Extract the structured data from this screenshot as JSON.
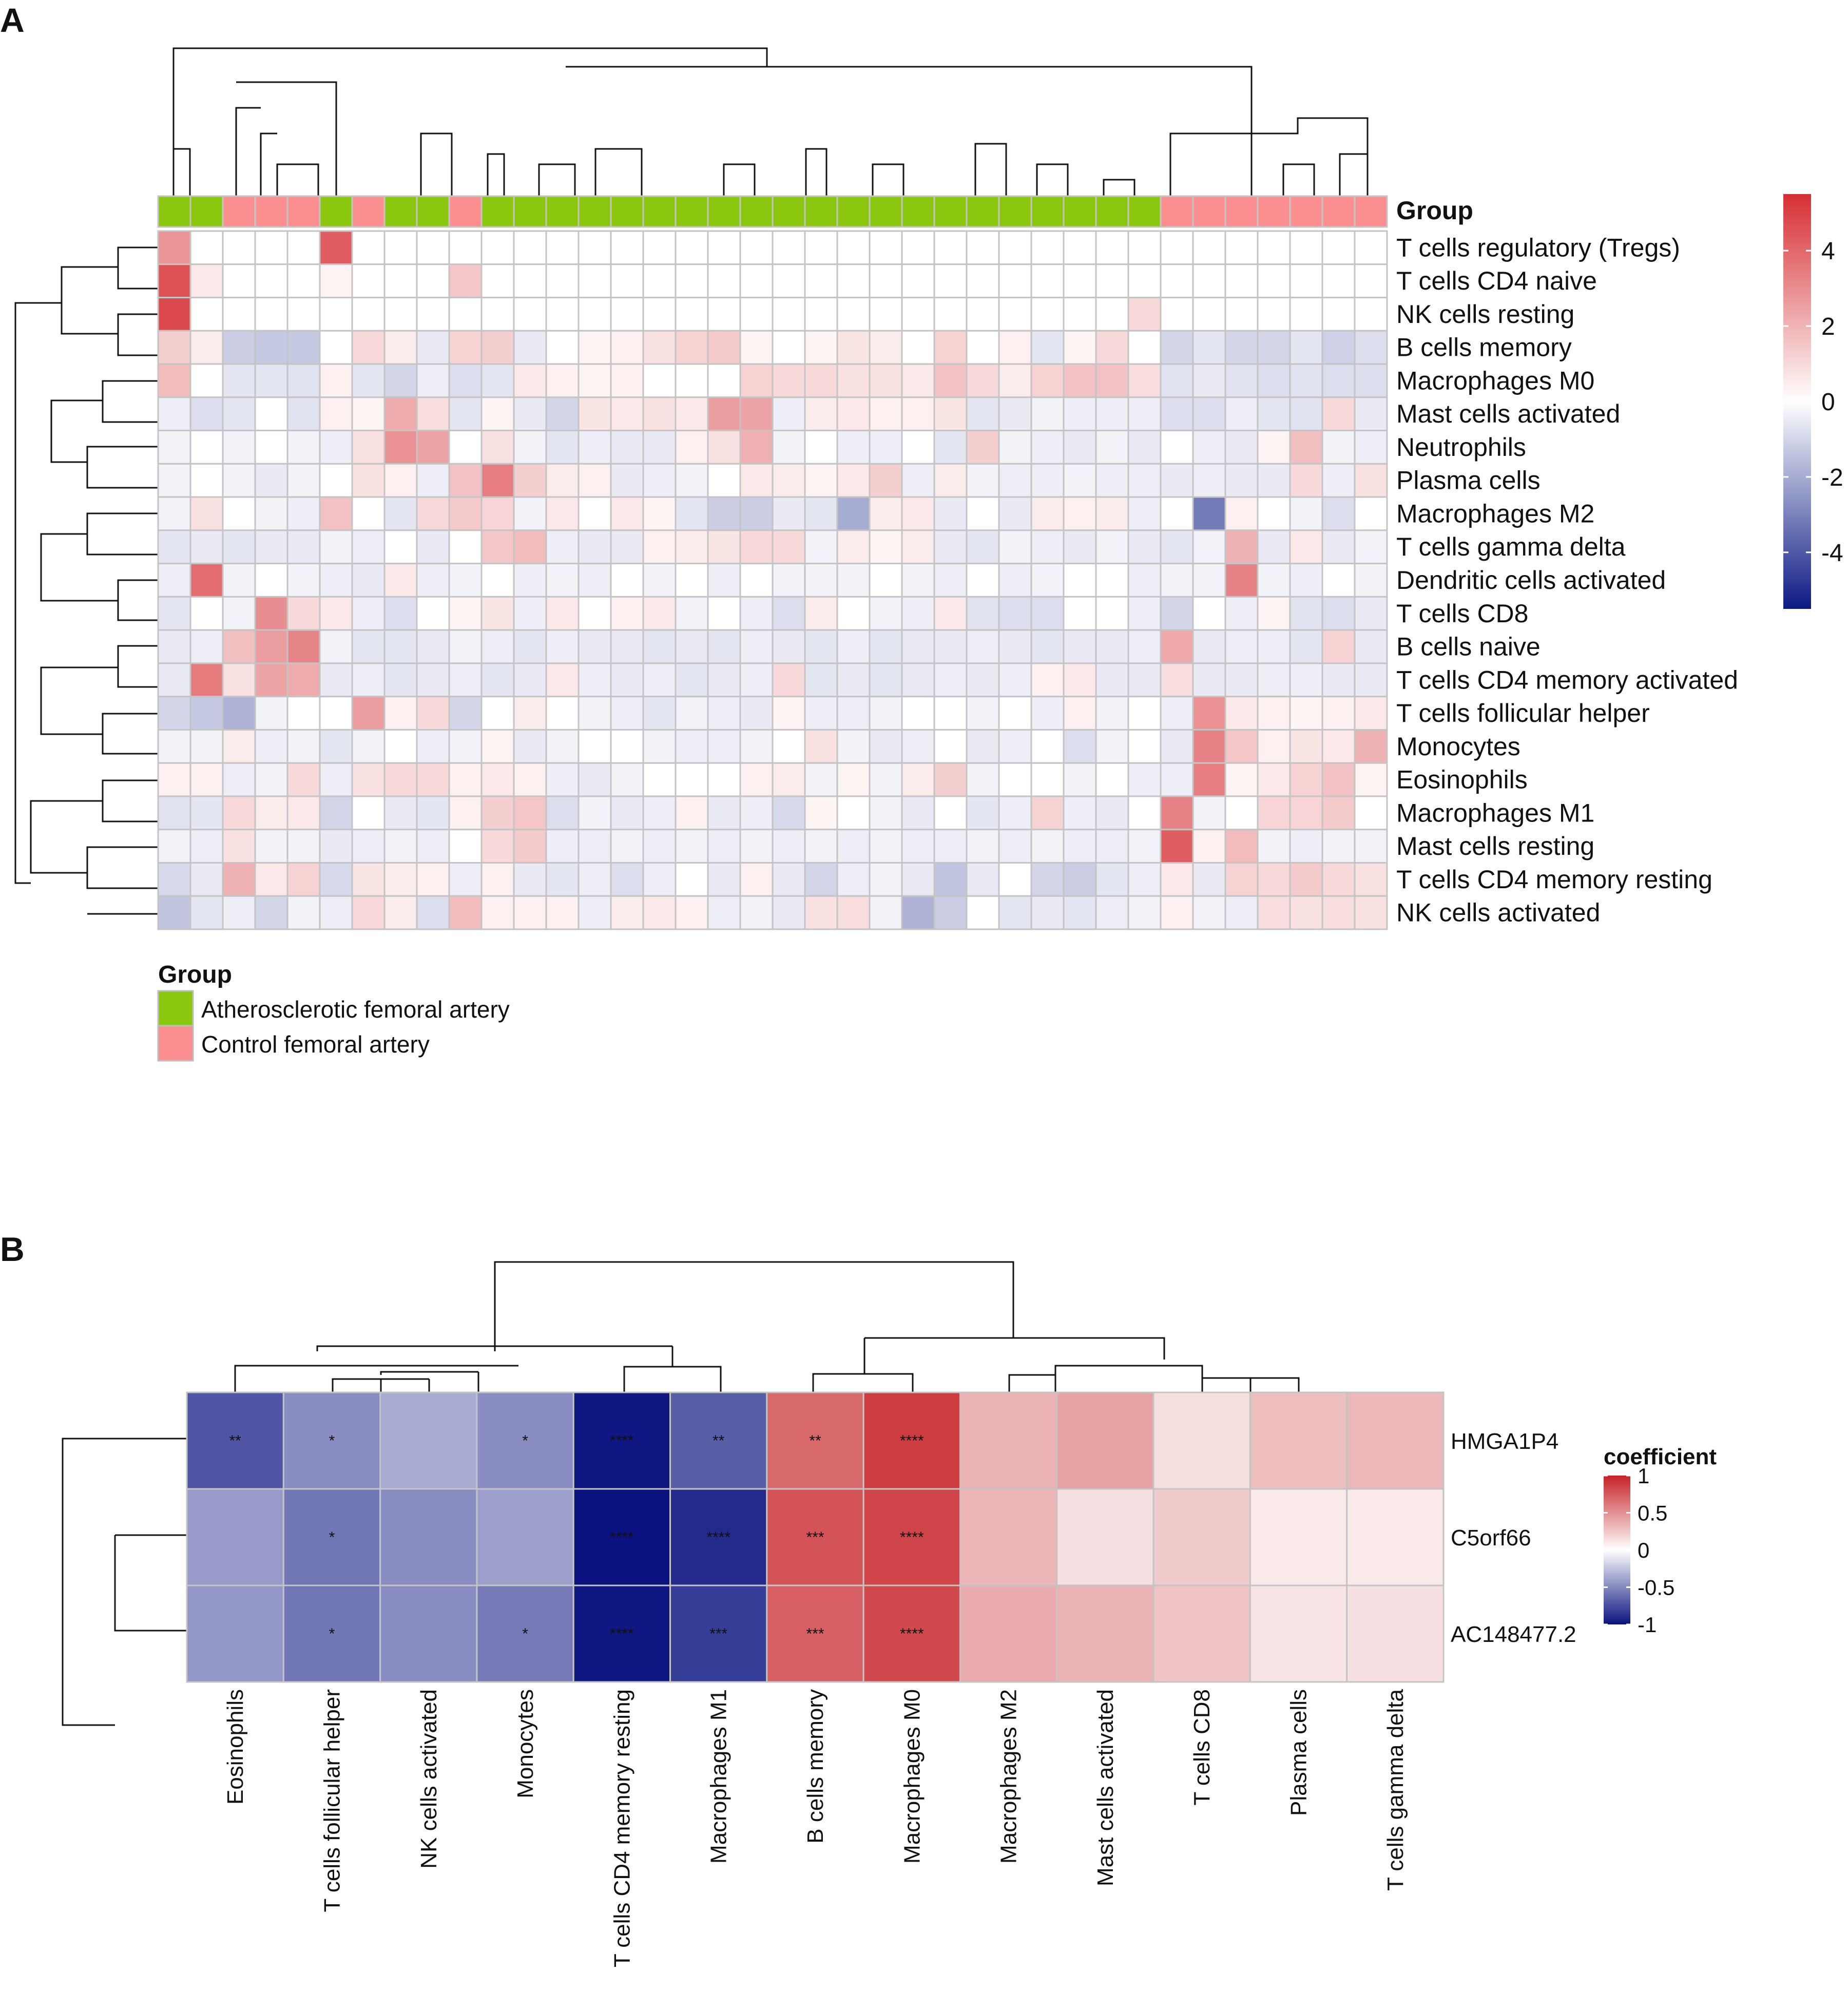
{
  "panel_a": {
    "label": "A",
    "group_label": "Group",
    "legend_title": "Group",
    "legend_items": [
      {
        "label": "Atherosclerotic femoral artery",
        "color": "#8cc70f"
      },
      {
        "label": "Control femoral artery",
        "color": "#fb8f8f"
      }
    ],
    "colorbar_ticks": [
      "4",
      "2",
      "0",
      "-2",
      "-4"
    ],
    "chart_data": {
      "type": "heatmap",
      "title": "",
      "rows": [
        "T cells regulatory (Tregs)",
        "T cells CD4 naive",
        "NK cells resting",
        "B cells memory",
        "Macrophages M0",
        "Mast cells activated",
        "Neutrophils",
        "Plasma cells",
        "Macrophages M2",
        "T cells gamma delta",
        "Dendritic cells activated",
        "T cells CD8",
        "B cells naive",
        "T cells CD4 memory activated",
        "T cells follicular helper",
        "Monocytes",
        "Eosinophils",
        "Macrophages M1",
        "Mast cells resting",
        "T cells CD4 memory resting",
        "NK cells activated"
      ],
      "groups": [
        "A",
        "A",
        "C",
        "C",
        "C",
        "A",
        "C",
        "A",
        "A",
        "C",
        "A",
        "A",
        "A",
        "A",
        "A",
        "A",
        "A",
        "A",
        "A",
        "A",
        "A",
        "A",
        "A",
        "A",
        "A",
        "A",
        "A",
        "A",
        "A",
        "A",
        "A",
        "C",
        "C",
        "C",
        "C",
        "C",
        "C",
        "C"
      ],
      "value_range": [
        -5.5,
        5.5
      ],
      "values": [
        [
          2.8,
          0,
          0,
          0,
          0,
          4.3,
          0,
          0,
          0,
          0,
          0,
          0,
          0,
          0,
          0,
          0,
          0,
          0,
          0,
          0,
          0,
          0,
          0,
          0,
          0,
          0,
          0,
          0,
          0,
          0,
          0,
          0,
          0,
          0,
          0,
          0,
          0,
          0
        ],
        [
          4.6,
          0.6,
          0,
          0,
          0,
          0.3,
          0,
          0,
          0,
          1.5,
          0,
          0,
          0,
          0,
          0,
          0,
          0,
          0,
          0,
          0,
          0,
          0,
          0,
          0,
          0,
          0,
          0,
          0,
          0,
          0,
          0,
          0,
          0,
          0,
          0,
          0,
          0,
          0
        ],
        [
          4.8,
          0,
          0,
          0,
          0,
          0,
          0,
          0,
          0,
          0,
          0,
          0,
          0,
          0,
          0,
          0,
          0,
          0,
          0,
          0,
          0,
          0,
          0,
          0,
          0,
          0,
          0,
          0,
          0,
          0,
          1.0,
          0,
          0,
          0,
          0,
          0,
          0,
          0
        ],
        [
          1.3,
          0.5,
          -1.2,
          -1.3,
          -1.3,
          0,
          1.0,
          0.5,
          -0.5,
          1.2,
          1.3,
          -0.5,
          0,
          0.3,
          0.4,
          0.8,
          1.2,
          1.4,
          0.3,
          0,
          0.3,
          0.7,
          0.5,
          0,
          1.2,
          0,
          0.4,
          -0.6,
          0.3,
          1.0,
          0,
          -1.0,
          -0.6,
          -1.0,
          -1.0,
          -0.6,
          -1.1,
          -0.8
        ],
        [
          1.8,
          0,
          -0.6,
          -0.6,
          -0.7,
          0.4,
          -0.6,
          -1.0,
          -0.4,
          -0.8,
          -0.6,
          0.6,
          0.4,
          0.3,
          0.4,
          0,
          0,
          0,
          1.2,
          1.0,
          1.0,
          0.8,
          0.8,
          0.6,
          1.6,
          1.0,
          0.5,
          1.2,
          1.6,
          1.6,
          0.9,
          -0.7,
          -0.5,
          -0.7,
          -0.8,
          -0.7,
          -0.8,
          -0.8
        ],
        [
          -0.4,
          -0.8,
          -0.6,
          0,
          -0.7,
          0.4,
          0.3,
          2.2,
          0.9,
          -0.6,
          0.3,
          -0.5,
          -1.0,
          0.7,
          0.6,
          0.8,
          0.6,
          2.6,
          2.4,
          -0.4,
          0.5,
          0.6,
          0.4,
          0.4,
          0.7,
          -0.6,
          -0.5,
          -0.3,
          -0.4,
          -0.4,
          -0.4,
          -0.8,
          -0.8,
          -0.4,
          -0.6,
          -0.7,
          1.0,
          -0.5
        ],
        [
          -0.3,
          0,
          -0.3,
          0,
          -0.3,
          -0.4,
          0.8,
          2.9,
          2.4,
          0,
          0.8,
          -0.3,
          -0.6,
          -0.4,
          -0.5,
          -0.5,
          0.4,
          0.8,
          2.1,
          -0.3,
          0,
          -0.4,
          -0.4,
          0,
          -0.6,
          1.3,
          -0.3,
          -0.4,
          -0.5,
          -0.3,
          -0.5,
          0,
          -0.4,
          -0.5,
          0.3,
          1.7,
          -0.3,
          -0.4
        ],
        [
          -0.3,
          0,
          -0.3,
          -0.5,
          -0.3,
          0,
          0.8,
          0.4,
          -0.4,
          1.6,
          3.4,
          1.3,
          0.5,
          0.4,
          -0.5,
          -0.4,
          -0.3,
          0,
          0.6,
          0.5,
          0.3,
          0.6,
          1.3,
          -0.4,
          0.5,
          -0.3,
          -0.4,
          -0.4,
          -0.3,
          -0.4,
          -0.4,
          -0.5,
          -0.4,
          -0.5,
          -0.5,
          1.0,
          -0.4,
          0.8
        ],
        [
          -0.3,
          0.8,
          0,
          -0.3,
          -0.4,
          1.6,
          0,
          -0.6,
          1.0,
          1.4,
          1.1,
          -0.3,
          0.6,
          0,
          0.6,
          0.3,
          -0.6,
          -1.2,
          -1.2,
          -0.5,
          -0.6,
          -2.0,
          0.5,
          0.6,
          -0.5,
          0,
          -0.5,
          0.5,
          0.4,
          0.5,
          -0.4,
          0,
          -3.2,
          0.4,
          0,
          -0.3,
          -0.8,
          0
        ],
        [
          -0.6,
          -0.5,
          -0.6,
          -0.5,
          -0.5,
          -0.3,
          -0.4,
          0,
          -0.5,
          0,
          1.5,
          1.8,
          -0.4,
          -0.5,
          -0.5,
          0.4,
          0.5,
          0.7,
          1.0,
          1.0,
          -0.3,
          0.5,
          0.3,
          0.5,
          -0.5,
          -0.6,
          -0.3,
          -0.4,
          -0.5,
          -0.3,
          -0.5,
          -0.6,
          -0.3,
          2.0,
          -0.5,
          0.6,
          -0.5,
          -0.3
        ],
        [
          -0.4,
          3.9,
          -0.3,
          0,
          -0.3,
          -0.4,
          -0.5,
          0.6,
          -0.4,
          -0.3,
          0,
          -0.4,
          -0.3,
          -0.4,
          0,
          -0.3,
          0,
          -0.4,
          0,
          -0.3,
          -0.3,
          -0.3,
          0,
          -0.3,
          -0.4,
          0,
          -0.4,
          -0.3,
          0,
          0,
          -0.4,
          -0.3,
          -0.3,
          3.3,
          -0.3,
          -0.4,
          0,
          -0.3
        ],
        [
          -0.6,
          0,
          -0.3,
          3.0,
          1.0,
          0.6,
          -0.4,
          -0.8,
          0,
          0.3,
          0.7,
          -0.4,
          0.6,
          0,
          0.4,
          0.6,
          -0.3,
          0,
          -0.4,
          -0.8,
          0.5,
          0,
          -0.3,
          -0.4,
          0.6,
          -0.7,
          -0.8,
          -0.8,
          0,
          0,
          -0.4,
          -1.0,
          0,
          -0.4,
          0.3,
          -0.7,
          -0.8,
          -0.5
        ],
        [
          -0.5,
          -0.4,
          1.7,
          2.6,
          3.2,
          -0.3,
          -0.6,
          -0.6,
          -0.5,
          -0.3,
          -0.4,
          -0.6,
          -0.4,
          -0.5,
          -0.5,
          -0.6,
          -0.5,
          -0.6,
          -0.4,
          -0.5,
          -0.6,
          -0.4,
          -0.6,
          -0.5,
          -0.5,
          -0.4,
          -0.5,
          -0.6,
          -0.5,
          -0.5,
          -0.4,
          2.3,
          -0.5,
          -0.4,
          -0.4,
          -0.6,
          1.2,
          -0.5
        ],
        [
          -0.5,
          3.5,
          0.8,
          2.4,
          2.2,
          -0.5,
          -0.4,
          -0.6,
          -0.5,
          -0.4,
          -0.6,
          -0.5,
          0.6,
          -0.4,
          -0.5,
          -0.4,
          -0.6,
          -0.5,
          -0.4,
          1.0,
          -0.6,
          -0.5,
          -0.6,
          -0.5,
          -0.4,
          -0.5,
          -0.4,
          0.4,
          0.6,
          -0.5,
          -0.5,
          0.9,
          -0.5,
          -0.5,
          -0.4,
          -0.4,
          -0.5,
          -0.5
        ],
        [
          -1.0,
          -1.3,
          -1.8,
          -0.3,
          0,
          0,
          2.6,
          0.4,
          1.0,
          -1.0,
          0,
          0.5,
          0,
          -0.3,
          -0.4,
          -0.6,
          -0.3,
          -0.4,
          -0.5,
          0.3,
          -0.4,
          -0.4,
          -0.3,
          0,
          0,
          -0.3,
          0,
          -0.4,
          0.4,
          -0.3,
          0,
          -0.4,
          2.9,
          0.6,
          0.4,
          0.3,
          0.4,
          0.6
        ],
        [
          -0.3,
          -0.3,
          0.5,
          -0.4,
          -0.3,
          -0.6,
          -0.3,
          0,
          -0.4,
          -0.3,
          0.3,
          -0.5,
          -0.3,
          0,
          0,
          -0.3,
          -0.4,
          -0.4,
          -0.3,
          0,
          0.8,
          -0.3,
          -0.5,
          -0.4,
          0,
          -0.5,
          -0.4,
          0,
          -0.8,
          -0.3,
          0,
          -0.5,
          3.3,
          1.5,
          0.4,
          0.7,
          0.6,
          2.0
        ],
        [
          0.4,
          0.4,
          -0.4,
          -0.3,
          1.0,
          -0.4,
          0.8,
          1.0,
          1.0,
          0.4,
          0.6,
          0.4,
          -0.4,
          -0.5,
          -0.3,
          0,
          0,
          0,
          0.4,
          0.5,
          -0.3,
          0.3,
          -0.3,
          0.5,
          1.3,
          -0.3,
          0,
          0,
          -0.3,
          0,
          -0.4,
          -0.4,
          3.4,
          0.3,
          0.6,
          1.2,
          1.6,
          0.3
        ],
        [
          -0.7,
          -0.6,
          1.0,
          0.5,
          0.6,
          -1.0,
          0,
          -0.5,
          -0.6,
          0.4,
          1.3,
          1.5,
          -0.8,
          -0.3,
          -0.5,
          -0.4,
          0.4,
          -0.5,
          -0.4,
          -0.9,
          0.3,
          0,
          -0.3,
          -0.5,
          0,
          -0.6,
          -0.4,
          1.2,
          -0.4,
          -0.5,
          0,
          3.3,
          -0.3,
          0,
          1.1,
          1.1,
          1.4,
          0
        ],
        [
          -0.3,
          -0.4,
          0.8,
          -0.3,
          -0.3,
          -0.5,
          -0.4,
          -0.3,
          -0.4,
          0,
          1.0,
          1.4,
          -0.4,
          -0.4,
          -0.3,
          -0.4,
          -0.3,
          -0.4,
          -0.3,
          -0.4,
          -0.3,
          -0.4,
          -0.3,
          -0.4,
          -0.4,
          -0.3,
          -0.4,
          -0.3,
          -0.4,
          -0.4,
          -0.3,
          4.3,
          0.4,
          1.8,
          -0.3,
          -0.4,
          -0.3,
          -0.3
        ],
        [
          -0.9,
          -0.5,
          2.0,
          0.6,
          1.2,
          -0.9,
          0.7,
          0.5,
          0.4,
          -0.4,
          0.4,
          -0.5,
          -0.6,
          -0.4,
          -0.8,
          -0.4,
          0,
          -0.5,
          0.4,
          -0.5,
          -1.0,
          -0.4,
          -0.3,
          -0.5,
          -1.4,
          -0.5,
          0,
          -1.0,
          -1.2,
          -0.6,
          -0.4,
          0.6,
          -0.5,
          1.2,
          1.0,
          1.4,
          1.0,
          0.8
        ],
        [
          -1.4,
          -0.6,
          -0.4,
          -1.0,
          -0.3,
          -0.4,
          1.0,
          0.5,
          -0.8,
          1.8,
          0.4,
          0.4,
          0.4,
          -0.4,
          0.5,
          0.6,
          0.4,
          -0.4,
          -0.3,
          -0.5,
          0.8,
          0.9,
          -0.3,
          -1.8,
          -1.2,
          0,
          -0.6,
          -0.5,
          -0.6,
          -0.4,
          -0.3,
          0.4,
          -0.3,
          -0.4,
          0.9,
          0.8,
          0.9,
          0.8
        ]
      ]
    }
  },
  "panel_b": {
    "label": "B",
    "colorbar_title": "coefficient",
    "colorbar_ticks": [
      "1",
      "0.5",
      "0",
      "-0.5",
      "-1"
    ],
    "chart_data": {
      "type": "heatmap",
      "title": "",
      "value_label": "coefficient",
      "value_range": [
        -1,
        1
      ],
      "rows": [
        "HMGA1P4",
        "C5orf66",
        "AC148477.2"
      ],
      "columns": [
        "Eosinophils",
        "T cells follicular helper",
        "NK cells activated",
        "Monocytes",
        "T cells CD4 memory resting",
        "Macrophages M1",
        "B cells memory",
        "Macrophages M0",
        "Macrophages M2",
        "Mast cells activated",
        "T cells CD8",
        "Plasma cells",
        "T cells gamma delta"
      ],
      "values": [
        [
          -0.72,
          -0.48,
          -0.35,
          -0.48,
          -0.98,
          -0.68,
          0.68,
          0.88,
          0.35,
          0.42,
          0.15,
          0.3,
          0.32
        ],
        [
          -0.42,
          -0.58,
          -0.48,
          -0.4,
          -1.0,
          -0.9,
          0.78,
          0.84,
          0.33,
          0.14,
          0.24,
          0.1,
          0.1
        ],
        [
          -0.44,
          -0.58,
          -0.48,
          -0.56,
          -0.98,
          -0.82,
          0.72,
          0.82,
          0.38,
          0.35,
          0.27,
          0.12,
          0.14
        ]
      ],
      "significance": [
        [
          "**",
          "*",
          "",
          "*",
          "****",
          "**",
          "**",
          "****",
          "",
          "",
          "",
          "",
          ""
        ],
        [
          "",
          "*",
          "",
          "",
          "****",
          "****",
          "***",
          "****",
          "",
          "",
          "",
          "",
          ""
        ],
        [
          "",
          "*",
          "",
          "*",
          "****",
          "***",
          "***",
          "****",
          "",
          "",
          "",
          "",
          ""
        ]
      ]
    }
  }
}
